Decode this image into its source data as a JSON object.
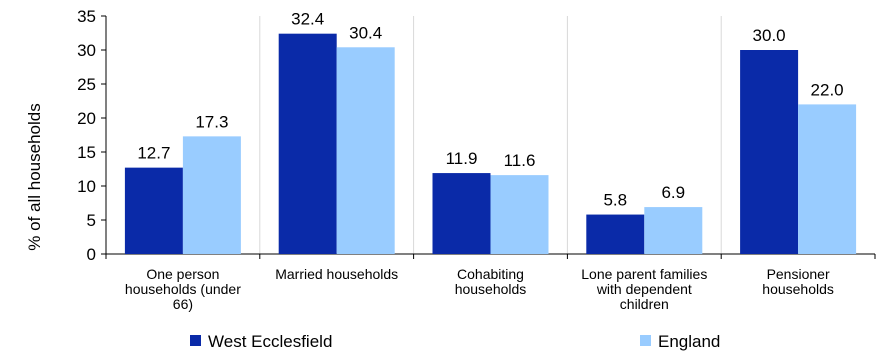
{
  "chart_data": {
    "type": "bar",
    "title": "",
    "xlabel": "",
    "ylabel": "% of all households",
    "ylim": [
      0,
      35
    ],
    "yticks": [
      0,
      5,
      10,
      15,
      20,
      25,
      30,
      35
    ],
    "categories": [
      "One person households (under 66)",
      "Married households",
      "Cohabiting households",
      "Lone parent families with dependent children",
      "Pensioner households"
    ],
    "category_label_lines": [
      [
        "One person",
        "households (under",
        "66)"
      ],
      [
        "Married households"
      ],
      [
        "Cohabiting",
        "households"
      ],
      [
        "Lone parent families",
        "with dependent",
        "children"
      ],
      [
        "Pensioner",
        "households"
      ]
    ],
    "series": [
      {
        "name": "West Ecclesfield",
        "color": "#0A2AA8",
        "values": [
          12.7,
          32.4,
          11.9,
          5.8,
          30.0
        ],
        "labels": [
          "12.7",
          "32.4",
          "11.9",
          "5.8",
          "30.0"
        ]
      },
      {
        "name": "England",
        "color": "#99CCFF",
        "values": [
          17.3,
          30.4,
          11.6,
          6.9,
          22.0
        ],
        "labels": [
          "17.3",
          "30.4",
          "11.6",
          "6.9",
          "22.0"
        ]
      }
    ],
    "grid": "vertical category separators",
    "legend_position": "bottom"
  }
}
